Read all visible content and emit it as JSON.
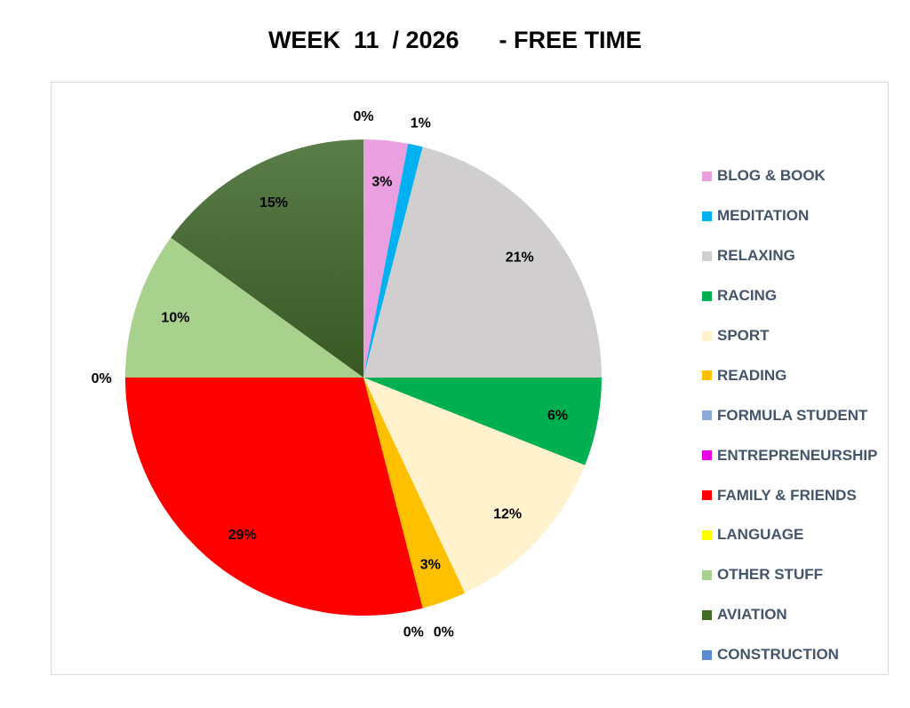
{
  "chart_data": {
    "type": "pie",
    "title": "WEEK  11  / 2026      - FREE TIME",
    "start_angle": "12 o'clock, clockwise",
    "slices": [
      {
        "label": "BLOG & BOOK",
        "value": 3,
        "display": "3%",
        "color": "#ea9fe0"
      },
      {
        "label": "MEDITATION",
        "value": 1,
        "display": "1%",
        "color": "#00b0f0"
      },
      {
        "label": "RELAXING",
        "value": 21,
        "display": "21%",
        "color": "#d0cece"
      },
      {
        "label": "RACING",
        "value": 6,
        "display": "6%",
        "color": "#00b050"
      },
      {
        "label": "SPORT",
        "value": 12,
        "display": "12%",
        "color": "#fff2cc"
      },
      {
        "label": "READING",
        "value": 3,
        "display": "3%",
        "color": "#ffc000"
      },
      {
        "label": "FORMULA STUDENT",
        "value": 0,
        "display": "0%",
        "color": "#8ea9db"
      },
      {
        "label": "ENTREPRENEURSHIP",
        "value": 0,
        "display": "0%",
        "color": "#e600e6"
      },
      {
        "label": "FAMILY & FRIENDS",
        "value": 29,
        "display": "29%",
        "color": "#ff0000"
      },
      {
        "label": "LANGUAGE",
        "value": 0,
        "display": "0%",
        "color": "#ffff00"
      },
      {
        "label": "OTHER STUFF",
        "value": 10,
        "display": "10%",
        "color": "#a9d18e"
      },
      {
        "label": "AVIATION",
        "value": 15,
        "display": "15%",
        "color": "#3f6b25"
      },
      {
        "label": "CONSTRUCTION",
        "value": 0,
        "display": "0%",
        "color": "#5b8bd5"
      }
    ],
    "legend_position": "right"
  }
}
